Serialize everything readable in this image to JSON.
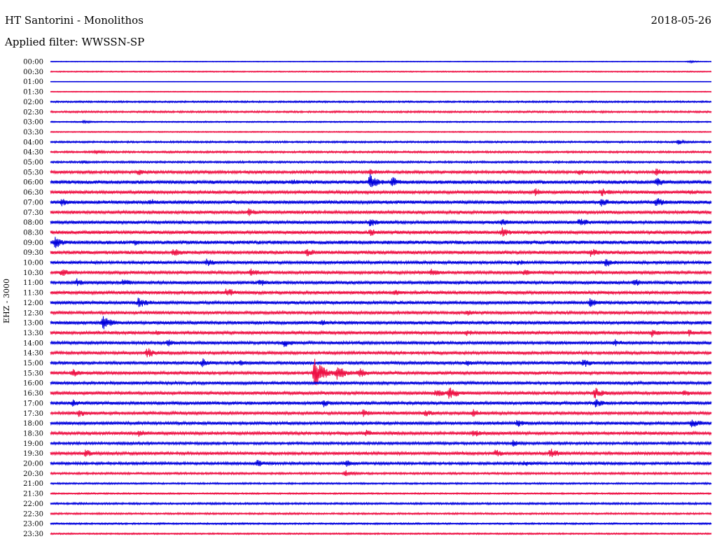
{
  "header": {
    "station": "HT Santorini - Monolithos",
    "date": "2018-05-26",
    "filter": "Applied filter: WWSSN-SP",
    "channel": "EHZ - 3000"
  },
  "colors": {
    "even_trace": "#0000dd",
    "odd_trace": "#ee1144"
  },
  "chart_data": {
    "type": "line",
    "title": "HT Santorini - Monolithos",
    "subtitle": "Applied filter: WWSSN-SP",
    "ylabel": "EHZ - 3000",
    "grid": false,
    "row_labels": [
      "00:00",
      "00:30",
      "01:00",
      "01:30",
      "02:00",
      "02:30",
      "03:00",
      "03:30",
      "04:00",
      "04:30",
      "05:00",
      "05:30",
      "06:00",
      "06:30",
      "07:00",
      "07:30",
      "08:00",
      "08:30",
      "09:00",
      "09:30",
      "10:00",
      "10:30",
      "11:00",
      "11:30",
      "12:00",
      "12:30",
      "13:00",
      "13:30",
      "14:00",
      "14:30",
      "15:00",
      "15:30",
      "16:00",
      "16:30",
      "17:00",
      "17:30",
      "18:00",
      "18:30",
      "19:00",
      "19:30",
      "20:00",
      "20:30",
      "21:00",
      "21:30",
      "22:00",
      "22:30",
      "23:00",
      "23:30"
    ],
    "noise_level": [
      0.5,
      0.8,
      0.3,
      0.6,
      1.2,
      1.3,
      0.9,
      0.8,
      1.3,
      1.4,
      1.4,
      2.0,
      2.6,
      2.2,
      2.4,
      2.3,
      2.3,
      2.4,
      2.6,
      2.4,
      2.1,
      2.2,
      2.3,
      2.2,
      2.3,
      2.2,
      2.3,
      2.2,
      2.2,
      2.1,
      2.2,
      2.3,
      2.2,
      2.2,
      2.3,
      2.2,
      2.1,
      2.1,
      1.9,
      2.1,
      1.9,
      1.5,
      1.2,
      1.1,
      1.4,
      1.3,
      1.2,
      1.1
    ],
    "events": [
      {
        "row": 0,
        "minute": 29,
        "amp": 2
      },
      {
        "row": 5,
        "minute": 25,
        "amp": 2
      },
      {
        "row": 6,
        "minute": 1.5,
        "amp": 3
      },
      {
        "row": 8,
        "minute": 28.5,
        "amp": 4
      },
      {
        "row": 9,
        "minute": 2,
        "amp": 4
      },
      {
        "row": 10,
        "minute": 1.5,
        "amp": 3
      },
      {
        "row": 11,
        "minute": 4,
        "amp": 5
      },
      {
        "row": 11,
        "minute": 14.5,
        "amp": 6
      },
      {
        "row": 11,
        "minute": 24,
        "amp": 5
      },
      {
        "row": 11,
        "minute": 27.5,
        "amp": 6
      },
      {
        "row": 12,
        "minute": 11,
        "amp": 5
      },
      {
        "row": 12,
        "minute": 14.5,
        "amp": 12
      },
      {
        "row": 12,
        "minute": 15.5,
        "amp": 8
      },
      {
        "row": 12,
        "minute": 27.5,
        "amp": 7
      },
      {
        "row": 13,
        "minute": 22,
        "amp": 6
      },
      {
        "row": 13,
        "minute": 25,
        "amp": 7
      },
      {
        "row": 13,
        "minute": 29,
        "amp": 5
      },
      {
        "row": 14,
        "minute": 0.5,
        "amp": 6
      },
      {
        "row": 14,
        "minute": 4.5,
        "amp": 6
      },
      {
        "row": 14,
        "minute": 25,
        "amp": 7
      },
      {
        "row": 14,
        "minute": 27.5,
        "amp": 8
      },
      {
        "row": 15,
        "minute": 9,
        "amp": 6
      },
      {
        "row": 16,
        "minute": 14.5,
        "amp": 7
      },
      {
        "row": 16,
        "minute": 20.5,
        "amp": 6
      },
      {
        "row": 16,
        "minute": 24,
        "amp": 8
      },
      {
        "row": 17,
        "minute": 14.5,
        "amp": 6
      },
      {
        "row": 17,
        "minute": 20.5,
        "amp": 8
      },
      {
        "row": 18,
        "minute": 0.2,
        "amp": 9
      },
      {
        "row": 18,
        "minute": 3.8,
        "amp": 5
      },
      {
        "row": 19,
        "minute": 5.6,
        "amp": 7
      },
      {
        "row": 19,
        "minute": 11.6,
        "amp": 7
      },
      {
        "row": 19,
        "minute": 24.5,
        "amp": 7
      },
      {
        "row": 20,
        "minute": 7.1,
        "amp": 6
      },
      {
        "row": 20,
        "minute": 21.2,
        "amp": 5
      },
      {
        "row": 20,
        "minute": 25.2,
        "amp": 7
      },
      {
        "row": 21,
        "minute": 0.5,
        "amp": 6
      },
      {
        "row": 21,
        "minute": 9.1,
        "amp": 7
      },
      {
        "row": 21,
        "minute": 17.3,
        "amp": 6
      },
      {
        "row": 21,
        "minute": 21.5,
        "amp": 5
      },
      {
        "row": 22,
        "minute": 1.2,
        "amp": 6
      },
      {
        "row": 22,
        "minute": 3.3,
        "amp": 6
      },
      {
        "row": 22,
        "minute": 9.5,
        "amp": 6
      },
      {
        "row": 22,
        "minute": 26.5,
        "amp": 6
      },
      {
        "row": 23,
        "minute": 8.0,
        "amp": 8
      },
      {
        "row": 23,
        "minute": 15.6,
        "amp": 5
      },
      {
        "row": 24,
        "minute": 4.0,
        "amp": 9
      },
      {
        "row": 24,
        "minute": 24.5,
        "amp": 7
      },
      {
        "row": 25,
        "minute": 18.9,
        "amp": 5
      },
      {
        "row": 26,
        "minute": 2.4,
        "amp": 11
      },
      {
        "row": 26,
        "minute": 12.3,
        "amp": 5
      },
      {
        "row": 27,
        "minute": 4.8,
        "amp": 5
      },
      {
        "row": 27,
        "minute": 18.9,
        "amp": 5
      },
      {
        "row": 27,
        "minute": 27.3,
        "amp": 7
      },
      {
        "row": 27,
        "minute": 29.0,
        "amp": 6
      },
      {
        "row": 28,
        "minute": 5.3,
        "amp": 6
      },
      {
        "row": 28,
        "minute": 10.6,
        "amp": 7
      },
      {
        "row": 28,
        "minute": 25.6,
        "amp": 6
      },
      {
        "row": 29,
        "minute": 4.4,
        "amp": 8
      },
      {
        "row": 30,
        "minute": 6.9,
        "amp": 7
      },
      {
        "row": 30,
        "minute": 8.6,
        "amp": 5
      },
      {
        "row": 30,
        "minute": 18.9,
        "amp": 5
      },
      {
        "row": 30,
        "minute": 24.2,
        "amp": 7
      },
      {
        "row": 31,
        "minute": 1.0,
        "amp": 7
      },
      {
        "row": 31,
        "minute": 12.0,
        "amp": 22
      },
      {
        "row": 31,
        "minute": 13.0,
        "amp": 12
      },
      {
        "row": 31,
        "minute": 14.0,
        "amp": 8
      },
      {
        "row": 33,
        "minute": 17.5,
        "amp": 7
      },
      {
        "row": 33,
        "minute": 18.1,
        "amp": 10
      },
      {
        "row": 33,
        "minute": 24.7,
        "amp": 9
      },
      {
        "row": 33,
        "minute": 28.7,
        "amp": 6
      },
      {
        "row": 34,
        "minute": 1.0,
        "amp": 6
      },
      {
        "row": 34,
        "minute": 12.4,
        "amp": 6
      },
      {
        "row": 34,
        "minute": 24.7,
        "amp": 7
      },
      {
        "row": 35,
        "minute": 1.3,
        "amp": 6
      },
      {
        "row": 35,
        "minute": 14.2,
        "amp": 6
      },
      {
        "row": 35,
        "minute": 17.0,
        "amp": 6
      },
      {
        "row": 35,
        "minute": 19.2,
        "amp": 6
      },
      {
        "row": 36,
        "minute": 21.2,
        "amp": 6
      },
      {
        "row": 36,
        "minute": 29.1,
        "amp": 8
      },
      {
        "row": 37,
        "minute": 4.0,
        "amp": 6
      },
      {
        "row": 37,
        "minute": 14.3,
        "amp": 6
      },
      {
        "row": 37,
        "minute": 19.2,
        "amp": 6
      },
      {
        "row": 38,
        "minute": 21.0,
        "amp": 5
      },
      {
        "row": 39,
        "minute": 1.6,
        "amp": 6
      },
      {
        "row": 39,
        "minute": 20.2,
        "amp": 6
      },
      {
        "row": 39,
        "minute": 22.7,
        "amp": 8
      },
      {
        "row": 40,
        "minute": 9.4,
        "amp": 6
      },
      {
        "row": 40,
        "minute": 13.4,
        "amp": 6
      },
      {
        "row": 40,
        "minute": 21.5,
        "amp": 5
      },
      {
        "row": 41,
        "minute": 13.4,
        "amp": 5
      }
    ]
  }
}
